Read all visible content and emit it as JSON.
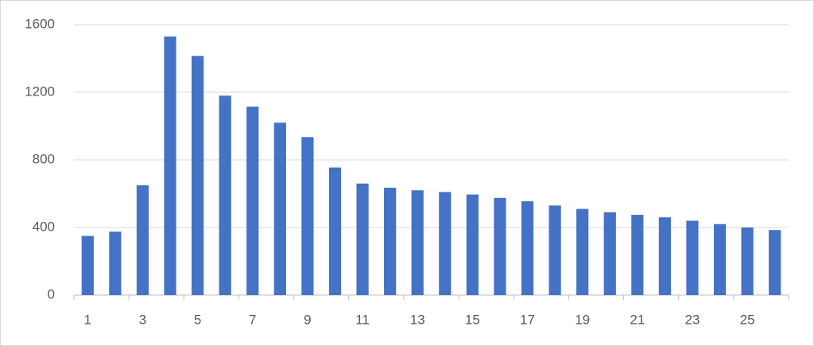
{
  "chart_data": {
    "type": "bar",
    "categories": [
      "1",
      null,
      "3",
      null,
      "5",
      null,
      "7",
      null,
      "9",
      null,
      "11",
      null,
      "13",
      null,
      "15",
      null,
      "17",
      null,
      "19",
      null,
      "21",
      null,
      "23",
      null,
      "25",
      null
    ],
    "values": [
      350,
      375,
      650,
      1530,
      1415,
      1180,
      1115,
      1020,
      935,
      755,
      660,
      635,
      620,
      610,
      595,
      575,
      555,
      530,
      510,
      490,
      475,
      460,
      440,
      420,
      400,
      385
    ],
    "color": "#4472c4",
    "ylim": [
      0,
      1600
    ],
    "yticks": [
      0,
      400,
      800,
      1200,
      1600
    ],
    "grid": true
  }
}
